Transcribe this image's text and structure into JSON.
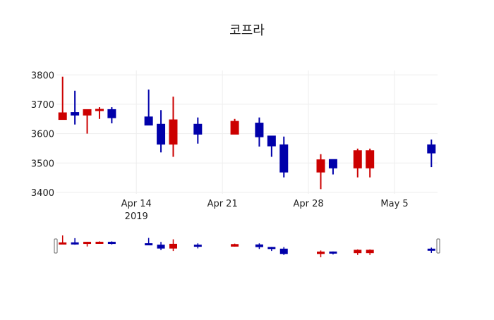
{
  "chart_data": {
    "type": "candlestick",
    "title": "코프라",
    "xlabel": "",
    "ylabel": "",
    "x_range": [
      "2019-04-07T12:00",
      "2019-05-08T12:00"
    ],
    "ylim": [
      3395,
      3815
    ],
    "y_ticks": [
      3400,
      3500,
      3600,
      3700,
      3800
    ],
    "x_ticks": [
      {
        "date": "2019-04-14",
        "label": "Apr 14",
        "sublabel": "2019"
      },
      {
        "date": "2019-04-21",
        "label": "Apr 21"
      },
      {
        "date": "2019-04-28",
        "label": "Apr 28"
      },
      {
        "date": "2019-05-05",
        "label": "May 5"
      }
    ],
    "grid": true,
    "rangeslider": true,
    "colors": {
      "increasing": "#cc0000",
      "decreasing": "#0000aa"
    },
    "series": [
      {
        "date": "2019-04-08",
        "open": 3648,
        "high": 3794,
        "low": 3648,
        "close": 3671
      },
      {
        "date": "2019-04-09",
        "open": 3672,
        "high": 3746,
        "low": 3631,
        "close": 3663
      },
      {
        "date": "2019-04-10",
        "open": 3663,
        "high": 3682,
        "low": 3600,
        "close": 3682
      },
      {
        "date": "2019-04-11",
        "open": 3678,
        "high": 3690,
        "low": 3650,
        "close": 3683
      },
      {
        "date": "2019-04-12",
        "open": 3682,
        "high": 3690,
        "low": 3635,
        "close": 3654
      },
      {
        "date": "2019-04-15",
        "open": 3657,
        "high": 3750,
        "low": 3629,
        "close": 3629
      },
      {
        "date": "2019-04-16",
        "open": 3632,
        "high": 3680,
        "low": 3536,
        "close": 3564
      },
      {
        "date": "2019-04-17",
        "open": 3564,
        "high": 3726,
        "low": 3521,
        "close": 3647
      },
      {
        "date": "2019-04-19",
        "open": 3632,
        "high": 3655,
        "low": 3566,
        "close": 3598
      },
      {
        "date": "2019-04-22",
        "open": 3598,
        "high": 3650,
        "low": 3598,
        "close": 3642
      },
      {
        "date": "2019-04-24",
        "open": 3636,
        "high": 3655,
        "low": 3556,
        "close": 3589
      },
      {
        "date": "2019-04-25",
        "open": 3592,
        "high": 3592,
        "low": 3521,
        "close": 3558
      },
      {
        "date": "2019-04-26",
        "open": 3562,
        "high": 3590,
        "low": 3451,
        "close": 3469
      },
      {
        "date": "2019-04-29",
        "open": 3469,
        "high": 3530,
        "low": 3411,
        "close": 3511
      },
      {
        "date": "2019-04-30",
        "open": 3512,
        "high": 3512,
        "low": 3461,
        "close": 3483
      },
      {
        "date": "2019-05-02",
        "open": 3483,
        "high": 3549,
        "low": 3451,
        "close": 3542
      },
      {
        "date": "2019-05-03",
        "open": 3483,
        "high": 3549,
        "low": 3451,
        "close": 3542
      },
      {
        "date": "2019-05-08",
        "open": 3562,
        "high": 3580,
        "low": 3486,
        "close": 3534
      }
    ]
  }
}
